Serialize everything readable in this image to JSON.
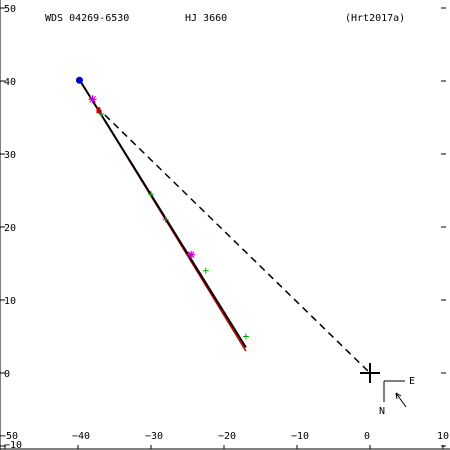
{
  "header": {
    "wds_id": "WDS 04269-6530",
    "discoverer": "HJ 3660",
    "reference": "(Hrt2017a)"
  },
  "compass": {
    "east_label": "E",
    "north_label": "N"
  },
  "chart_data": {
    "type": "scatter",
    "title": "",
    "xlabel": "",
    "ylabel": "",
    "xlim": [
      -50,
      10
    ],
    "ylim": [
      -10,
      50
    ],
    "x_ticks": [
      -50,
      -40,
      -30,
      -20,
      -10,
      0,
      10
    ],
    "y_ticks": [
      -10,
      0,
      10,
      20,
      30,
      40,
      50
    ],
    "x_tick_labels": [
      "−50",
      "−40",
      "−30",
      "−20",
      "−10",
      "0",
      "10"
    ],
    "y_tick_labels": [
      "−10",
      "0",
      "10",
      "20",
      "30",
      "40",
      "50"
    ],
    "orbit_line": [
      [
        -40.0,
        40.5
      ],
      [
        -17.0,
        3.5
      ]
    ],
    "fit_residual_line": [
      [
        -37.5,
        36.5
      ],
      [
        -17.0,
        3.0
      ]
    ],
    "dashed_line": [
      [
        -37.5,
        36.5
      ],
      [
        0.0,
        0.0
      ]
    ],
    "primary_position": [
      0,
      0
    ],
    "first_observation": [
      -39.8,
      40.1
    ],
    "magenta_marks": [
      [
        -38.0,
        37.5
      ],
      [
        -24.5,
        16.2
      ]
    ],
    "red_marks": [
      [
        -37.2,
        36.0
      ]
    ],
    "green_plus_marks": [
      [
        -36.8,
        35.5
      ],
      [
        -30.0,
        24.5
      ],
      [
        -28.0,
        21.0
      ],
      [
        -22.5,
        14.0
      ],
      [
        -17.0,
        5.0
      ]
    ],
    "colors": {
      "axis": "#000000",
      "orbit": "#000000",
      "residual": "#cc0000",
      "first_point": "#0000cc",
      "magenta": "#cc00cc",
      "green": "#00aa00",
      "red": "#cc0000"
    }
  }
}
